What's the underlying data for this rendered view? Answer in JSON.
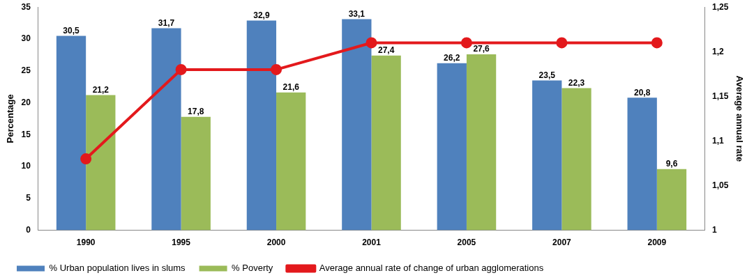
{
  "chart_data": {
    "type": "bar",
    "categories": [
      "1990",
      "1995",
      "2000",
      "2001",
      "2005",
      "2007",
      "2009"
    ],
    "ylabel": "Percentage",
    "y2label": "Average annual rate",
    "ylim": [
      0,
      35
    ],
    "yticks": [
      0,
      5,
      10,
      15,
      20,
      25,
      30,
      35
    ],
    "y2lim": [
      1,
      1.25
    ],
    "y2ticks": [
      {
        "value": 1,
        "label": "1"
      },
      {
        "value": 1.05,
        "label": "1,05"
      },
      {
        "value": 1.1,
        "label": "1,1"
      },
      {
        "value": 1.15,
        "label": "1,15"
      },
      {
        "value": 1.2,
        "label": "1,2"
      },
      {
        "value": 1.25,
        "label": "1,25"
      }
    ],
    "grid": false,
    "legend": "bottom",
    "series": [
      {
        "name": "% Urban population lives in slums",
        "color": "#4f81bd",
        "values": [
          30.5,
          31.7,
          32.9,
          33.1,
          26.2,
          23.5,
          20.8
        ],
        "value_labels": [
          "30,5",
          "31,7",
          "32,9",
          "33,1",
          "26,2",
          "23,5",
          "20,8"
        ]
      },
      {
        "name": "% Poverty",
        "color": "#9bbb59",
        "values": [
          21.2,
          17.8,
          21.6,
          27.4,
          27.6,
          22.3,
          9.6
        ],
        "value_labels": [
          "21,2",
          "17,8",
          "21,6",
          "27,4",
          "27,6",
          "22,3",
          "9,6"
        ]
      },
      {
        "name": "Average annual rate of change of urban agglomerations",
        "type": "line",
        "axis": "y2",
        "color": "#e3191c",
        "marker": "circle",
        "values": [
          1.08,
          1.18,
          1.18,
          1.21,
          1.21,
          1.21,
          1.21
        ]
      }
    ]
  }
}
